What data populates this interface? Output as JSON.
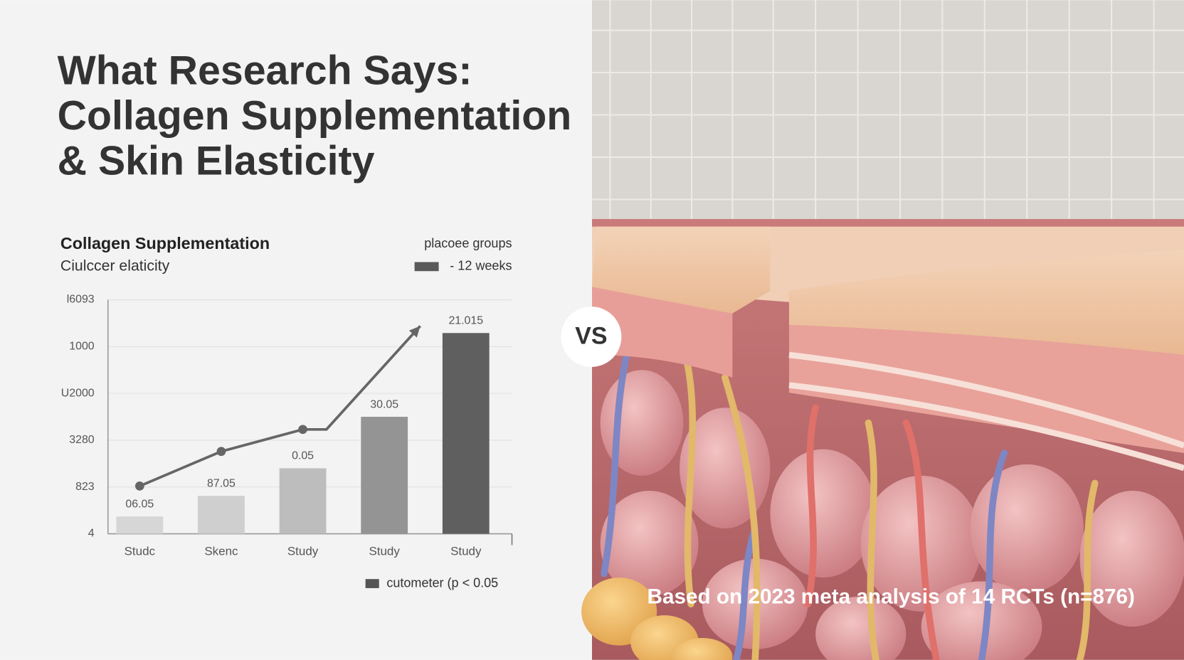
{
  "header": {
    "title": [
      "What Research Says:",
      "Collagen Supplementation",
      "& Skin Elasticity"
    ]
  },
  "chart_data": {
    "type": "bar",
    "title": "Collagen Supplementation",
    "subtitle": "Ciulccer elaticity",
    "legend_top": {
      "name": "placoee groups",
      "entry": "- 12 weeks",
      "color": "#5a5a5a"
    },
    "legend_bottom": {
      "entry": "cutometer  (p < 0.05",
      "color": "#555555"
    },
    "categories": [
      "Studc",
      "Skenc",
      "Study",
      "Study",
      "Study"
    ],
    "values": [
      0.37,
      0.81,
      1.4,
      2.5,
      4.29
    ],
    "colors": [
      "#d6d6d6",
      "#cfcfcf",
      "#bdbdbd",
      "#949494",
      "#5f5f5f"
    ],
    "annotations": [
      "06.05",
      "87.05",
      "0.05",
      "30.05",
      "21.015"
    ],
    "trend": {
      "x": [
        0,
        1,
        2,
        2.29,
        3.44
      ],
      "values": [
        1.02,
        1.76,
        2.23,
        2.23,
        4.44
      ],
      "color": "#666666"
    },
    "ylim": [
      0,
      5
    ],
    "yticks": [
      {
        "value": 0,
        "label": "4"
      },
      {
        "value": 1,
        "label": "823"
      },
      {
        "value": 2,
        "label": "3280"
      },
      {
        "value": 3,
        "label": "U2000"
      },
      {
        "value": 4,
        "label": "1000"
      },
      {
        "value": 5,
        "label": "l6093"
      }
    ],
    "grid": true
  },
  "illustration": {
    "badge": "VS",
    "caption": "Based on 2023 meta analysis of 14 RCTs (n=876)"
  }
}
